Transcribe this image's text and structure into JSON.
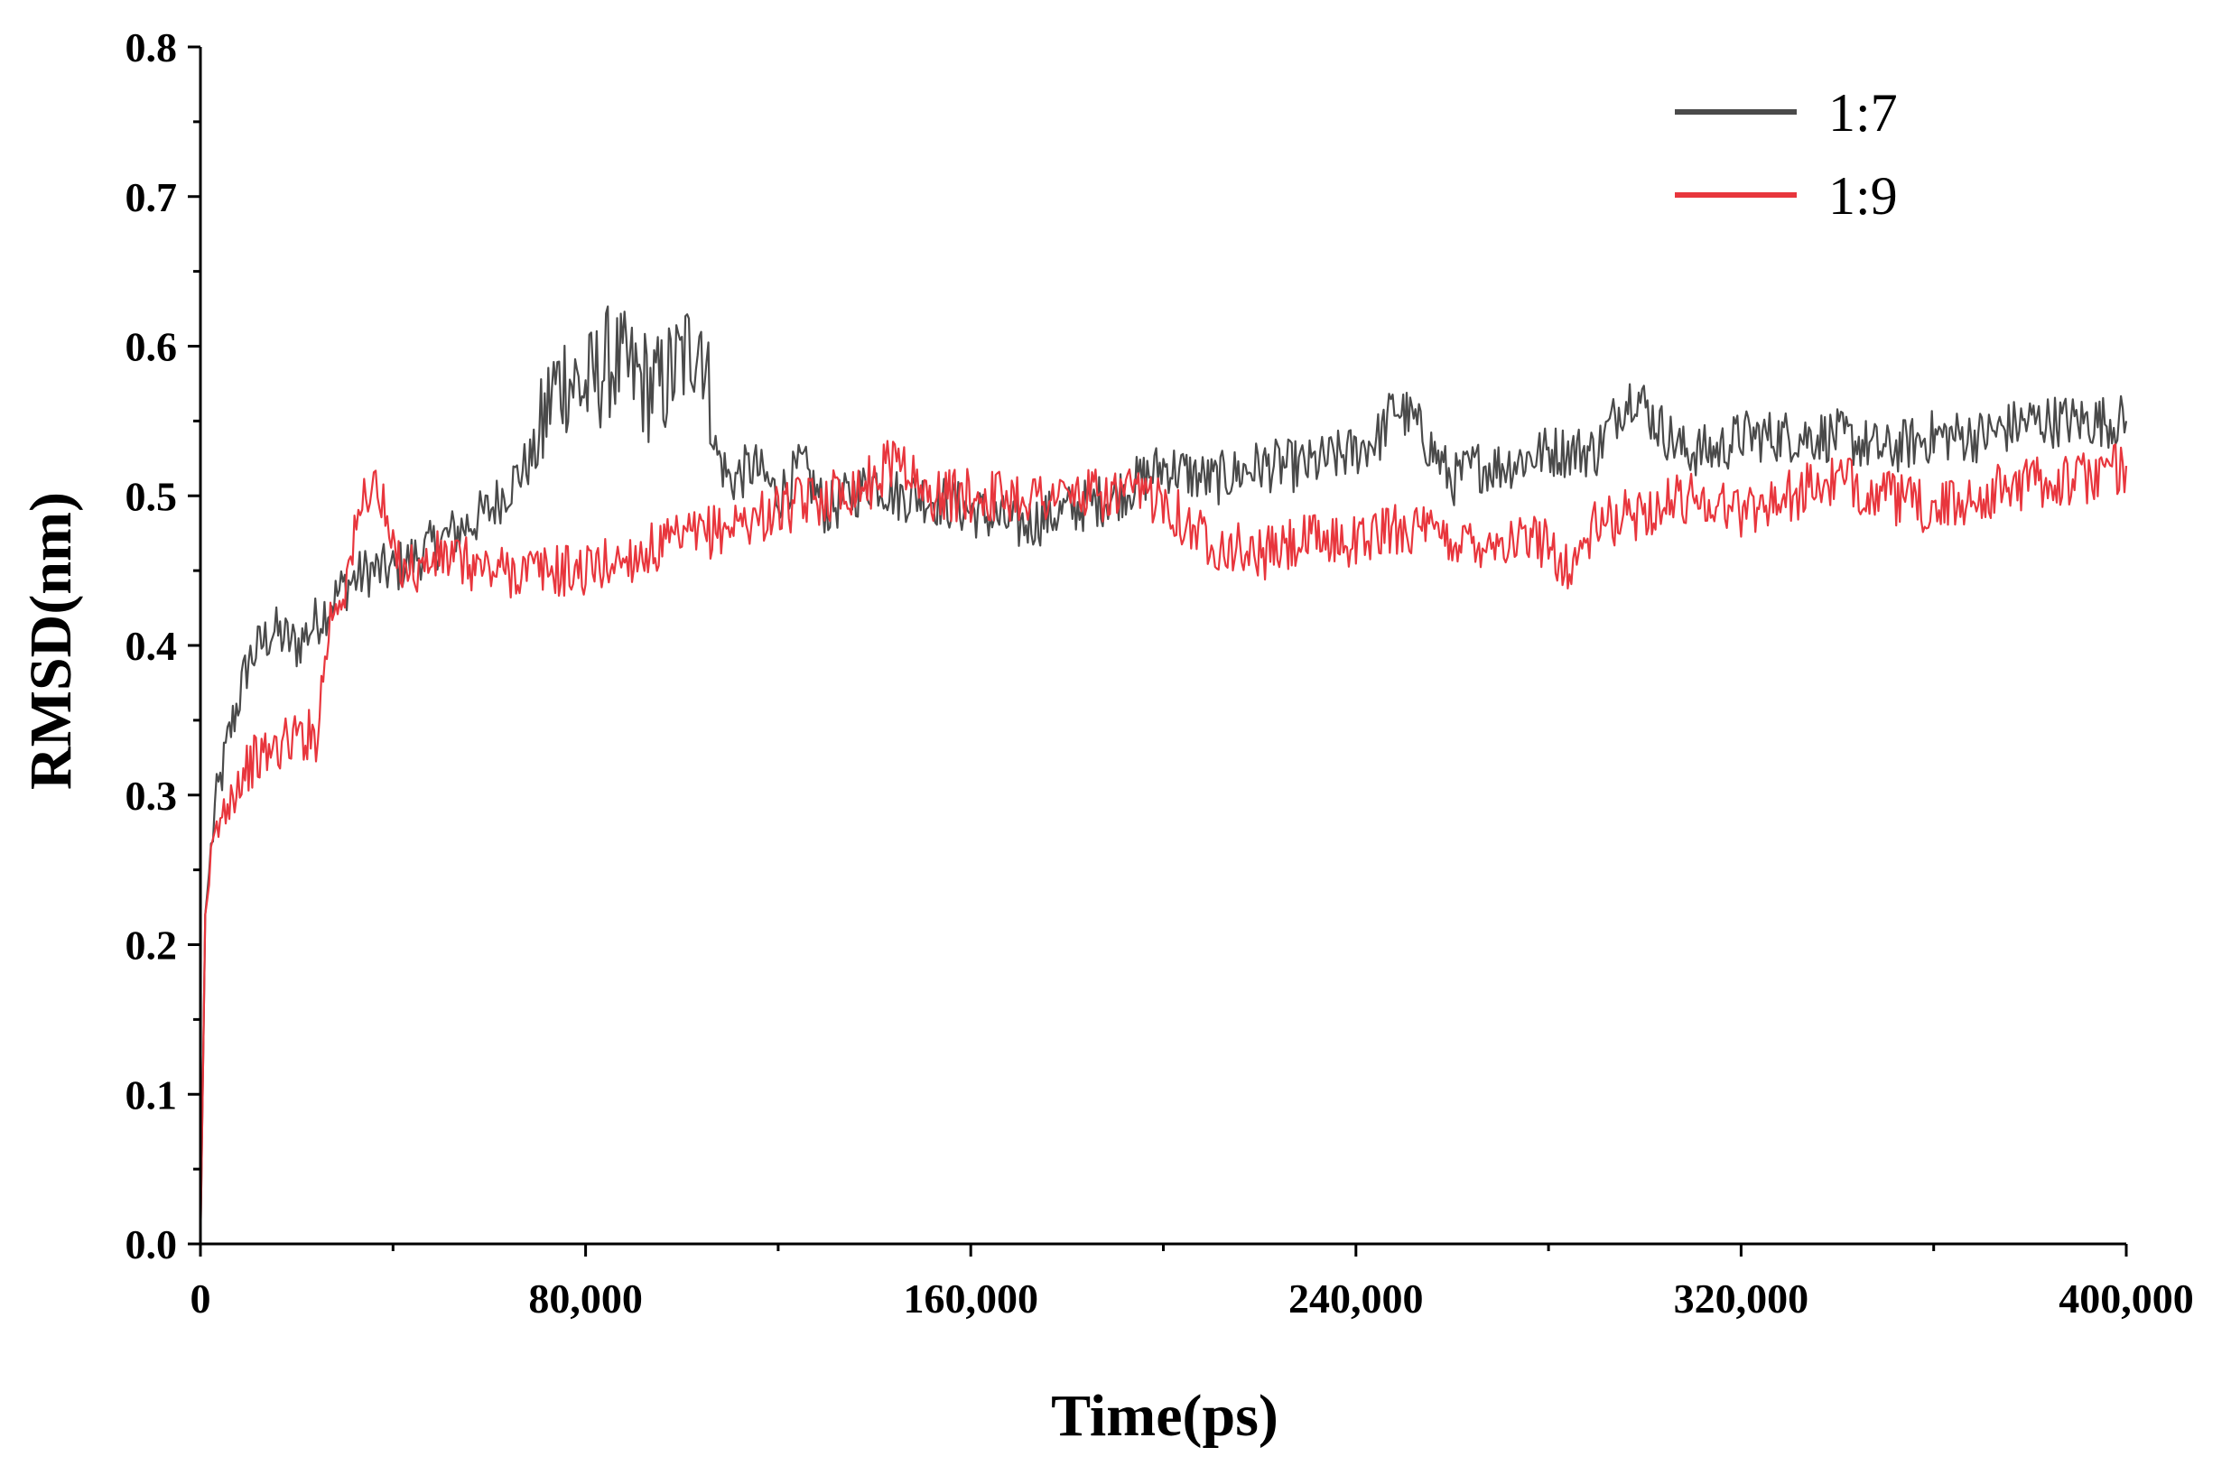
{
  "chart_data": {
    "type": "line",
    "title": "",
    "xlabel": "Time(ps)",
    "ylabel": "RMSD(nm)",
    "xlim": [
      0,
      400000
    ],
    "ylim": [
      0.0,
      0.8
    ],
    "x_ticks": [
      0,
      80000,
      160000,
      240000,
      320000,
      400000
    ],
    "x_tick_labels": [
      "0",
      "80,000",
      "160,000",
      "240,000",
      "320,000",
      "400,000"
    ],
    "y_ticks": [
      0.0,
      0.1,
      0.2,
      0.3,
      0.4,
      0.5,
      0.6,
      0.7,
      0.8
    ],
    "y_tick_labels": [
      "0.0",
      "0.1",
      "0.2",
      "0.3",
      "0.4",
      "0.5",
      "0.6",
      "0.7",
      "0.8"
    ],
    "grid": false,
    "legend_position": "top-right",
    "series": [
      {
        "name": "1:7",
        "color": "#4a4a4a",
        "x": [
          0,
          1000,
          3000,
          6000,
          10000,
          15000,
          20000,
          25000,
          30000,
          35000,
          40000,
          45000,
          50000,
          55000,
          60000,
          65000,
          70000,
          73000,
          76000,
          80000,
          85000,
          90000,
          95000,
          100000,
          104000,
          107000,
          110000,
          115000,
          120000,
          125000,
          130000,
          135000,
          140000,
          145000,
          150000,
          160000,
          170000,
          180000,
          190000,
          200000,
          210000,
          220000,
          230000,
          240000,
          245000,
          248000,
          252000,
          256000,
          260000,
          265000,
          270000,
          280000,
          290000,
          295000,
          298000,
          302000,
          308000,
          315000,
          320000,
          330000,
          340000,
          350000,
          360000,
          370000,
          380000,
          390000,
          400000
        ],
        "y": [
          0.0,
          0.22,
          0.29,
          0.34,
          0.39,
          0.41,
          0.4,
          0.42,
          0.44,
          0.45,
          0.45,
          0.46,
          0.47,
          0.48,
          0.49,
          0.51,
          0.53,
          0.57,
          0.58,
          0.57,
          0.59,
          0.58,
          0.57,
          0.59,
          0.61,
          0.53,
          0.51,
          0.52,
          0.5,
          0.52,
          0.49,
          0.5,
          0.51,
          0.5,
          0.5,
          0.49,
          0.48,
          0.49,
          0.5,
          0.52,
          0.51,
          0.52,
          0.52,
          0.53,
          0.54,
          0.56,
          0.55,
          0.53,
          0.51,
          0.52,
          0.52,
          0.53,
          0.53,
          0.56,
          0.57,
          0.55,
          0.53,
          0.53,
          0.54,
          0.54,
          0.54,
          0.53,
          0.54,
          0.54,
          0.55,
          0.55,
          0.55
        ]
      },
      {
        "name": "1:9",
        "color": "#e8363d",
        "x": [
          0,
          1000,
          3000,
          6000,
          10000,
          15000,
          20000,
          24000,
          27000,
          30000,
          32000,
          34000,
          36000,
          38000,
          40000,
          45000,
          50000,
          60000,
          70000,
          80000,
          90000,
          100000,
          110000,
          120000,
          130000,
          140000,
          145000,
          150000,
          160000,
          170000,
          180000,
          190000,
          200000,
          205000,
          210000,
          220000,
          230000,
          240000,
          250000,
          260000,
          270000,
          280000,
          284000,
          290000,
          300000,
          310000,
          320000,
          330000,
          340000,
          350000,
          360000,
          370000,
          380000,
          390000,
          400000
        ],
        "y": [
          0.0,
          0.22,
          0.27,
          0.3,
          0.32,
          0.33,
          0.34,
          0.34,
          0.42,
          0.44,
          0.47,
          0.5,
          0.51,
          0.49,
          0.46,
          0.45,
          0.46,
          0.45,
          0.45,
          0.45,
          0.46,
          0.47,
          0.48,
          0.49,
          0.5,
          0.51,
          0.53,
          0.5,
          0.5,
          0.5,
          0.5,
          0.5,
          0.5,
          0.48,
          0.47,
          0.46,
          0.47,
          0.47,
          0.48,
          0.47,
          0.47,
          0.47,
          0.45,
          0.48,
          0.49,
          0.5,
          0.49,
          0.5,
          0.51,
          0.5,
          0.49,
          0.5,
          0.51,
          0.51,
          0.52
        ]
      }
    ]
  }
}
